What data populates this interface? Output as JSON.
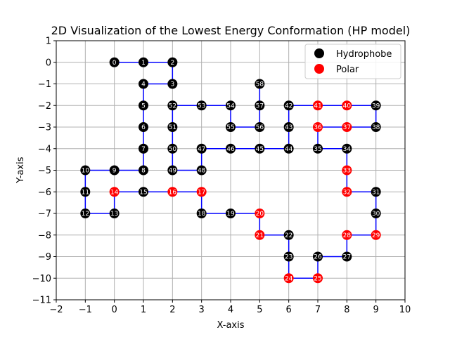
{
  "chart_data": {
    "type": "scatter",
    "title": "2D Visualization of the Lowest Energy Conformation (HP model)",
    "xlabel": "X-axis",
    "ylabel": "Y-axis",
    "xlim": [
      -2,
      10
    ],
    "ylim": [
      -11,
      1
    ],
    "xticks": [
      -2,
      -1,
      0,
      1,
      2,
      3,
      4,
      5,
      6,
      7,
      8,
      9,
      10
    ],
    "yticks": [
      1,
      0,
      -1,
      -2,
      -3,
      -4,
      -5,
      -6,
      -7,
      -8,
      -9,
      -10,
      -11
    ],
    "grid": true,
    "legend_position": "top-right",
    "colors": {
      "hydrophobe": "#000000",
      "polar": "#ff0000",
      "chain": "#0000ff",
      "grid": "#b0b0b0"
    },
    "legend": [
      {
        "name": "Hydrophobe",
        "type": "H"
      },
      {
        "name": "Polar",
        "type": "P"
      }
    ],
    "points": [
      {
        "id": 0,
        "x": 0,
        "y": 0,
        "type": "H"
      },
      {
        "id": 1,
        "x": 1,
        "y": 0,
        "type": "H"
      },
      {
        "id": 2,
        "x": 2,
        "y": 0,
        "type": "H"
      },
      {
        "id": 3,
        "x": 2,
        "y": -1,
        "type": "H"
      },
      {
        "id": 4,
        "x": 1,
        "y": -1,
        "type": "H"
      },
      {
        "id": 5,
        "x": 1,
        "y": -2,
        "type": "H"
      },
      {
        "id": 6,
        "x": 1,
        "y": -3,
        "type": "H"
      },
      {
        "id": 7,
        "x": 1,
        "y": -4,
        "type": "H"
      },
      {
        "id": 8,
        "x": 1,
        "y": -5,
        "type": "H"
      },
      {
        "id": 9,
        "x": 0,
        "y": -5,
        "type": "H"
      },
      {
        "id": 10,
        "x": -1,
        "y": -5,
        "type": "H"
      },
      {
        "id": 11,
        "x": -1,
        "y": -6,
        "type": "H"
      },
      {
        "id": 12,
        "x": -1,
        "y": -7,
        "type": "H"
      },
      {
        "id": 13,
        "x": 0,
        "y": -7,
        "type": "H"
      },
      {
        "id": 14,
        "x": 0,
        "y": -6,
        "type": "P"
      },
      {
        "id": 15,
        "x": 1,
        "y": -6,
        "type": "H"
      },
      {
        "id": 16,
        "x": 2,
        "y": -6,
        "type": "P"
      },
      {
        "id": 17,
        "x": 3,
        "y": -6,
        "type": "P"
      },
      {
        "id": 18,
        "x": 3,
        "y": -7,
        "type": "H"
      },
      {
        "id": 19,
        "x": 4,
        "y": -7,
        "type": "H"
      },
      {
        "id": 20,
        "x": 5,
        "y": -7,
        "type": "P"
      },
      {
        "id": 21,
        "x": 5,
        "y": -8,
        "type": "P"
      },
      {
        "id": 22,
        "x": 6,
        "y": -8,
        "type": "H"
      },
      {
        "id": 23,
        "x": 6,
        "y": -9,
        "type": "H"
      },
      {
        "id": 24,
        "x": 6,
        "y": -10,
        "type": "P"
      },
      {
        "id": 25,
        "x": 7,
        "y": -10,
        "type": "P"
      },
      {
        "id": 26,
        "x": 7,
        "y": -9,
        "type": "H"
      },
      {
        "id": 27,
        "x": 8,
        "y": -9,
        "type": "H"
      },
      {
        "id": 28,
        "x": 8,
        "y": -8,
        "type": "P"
      },
      {
        "id": 29,
        "x": 9,
        "y": -8,
        "type": "P"
      },
      {
        "id": 30,
        "x": 9,
        "y": -7,
        "type": "H"
      },
      {
        "id": 31,
        "x": 9,
        "y": -6,
        "type": "H"
      },
      {
        "id": 32,
        "x": 8,
        "y": -6,
        "type": "P"
      },
      {
        "id": 33,
        "x": 8,
        "y": -5,
        "type": "P"
      },
      {
        "id": 34,
        "x": 8,
        "y": -4,
        "type": "H"
      },
      {
        "id": 35,
        "x": 7,
        "y": -4,
        "type": "H"
      },
      {
        "id": 36,
        "x": 7,
        "y": -3,
        "type": "P"
      },
      {
        "id": 37,
        "x": 8,
        "y": -3,
        "type": "P"
      },
      {
        "id": 38,
        "x": 9,
        "y": -3,
        "type": "H"
      },
      {
        "id": 39,
        "x": 9,
        "y": -2,
        "type": "H"
      },
      {
        "id": 40,
        "x": 8,
        "y": -2,
        "type": "P"
      },
      {
        "id": 41,
        "x": 7,
        "y": -2,
        "type": "P"
      },
      {
        "id": 42,
        "x": 6,
        "y": -2,
        "type": "H"
      },
      {
        "id": 43,
        "x": 6,
        "y": -3,
        "type": "H"
      },
      {
        "id": 44,
        "x": 6,
        "y": -4,
        "type": "H"
      },
      {
        "id": 45,
        "x": 5,
        "y": -4,
        "type": "H"
      },
      {
        "id": 46,
        "x": 4,
        "y": -4,
        "type": "H"
      },
      {
        "id": 47,
        "x": 3,
        "y": -4,
        "type": "H"
      },
      {
        "id": 48,
        "x": 3,
        "y": -5,
        "type": "H"
      },
      {
        "id": 49,
        "x": 2,
        "y": -5,
        "type": "H"
      },
      {
        "id": 50,
        "x": 2,
        "y": -4,
        "type": "H"
      },
      {
        "id": 51,
        "x": 2,
        "y": -3,
        "type": "H"
      },
      {
        "id": 52,
        "x": 2,
        "y": -2,
        "type": "H"
      },
      {
        "id": 53,
        "x": 3,
        "y": -2,
        "type": "H"
      },
      {
        "id": 54,
        "x": 4,
        "y": -2,
        "type": "H"
      },
      {
        "id": 55,
        "x": 4,
        "y": -3,
        "type": "H"
      },
      {
        "id": 56,
        "x": 5,
        "y": -3,
        "type": "H"
      },
      {
        "id": 57,
        "x": 5,
        "y": -2,
        "type": "H"
      },
      {
        "id": 58,
        "x": 5,
        "y": -1,
        "type": "H"
      }
    ]
  }
}
